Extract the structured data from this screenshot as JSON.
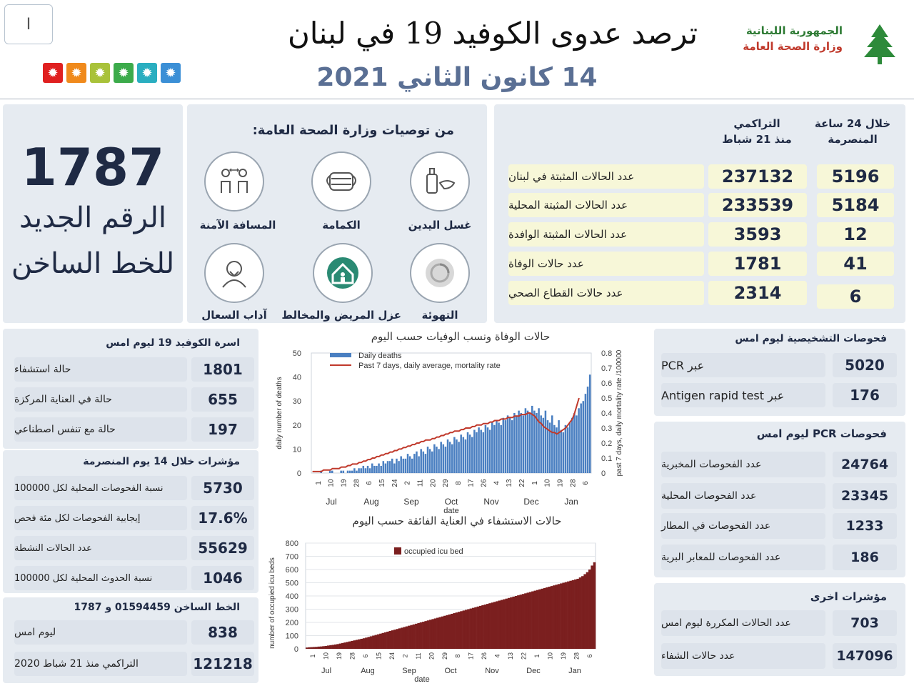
{
  "header": {
    "title": "ترصد عدوى الكوفيد 19 في لبنان",
    "date": "14 كانون الثاني 2021",
    "ministry_line1": "الجمهورية اللبنانية",
    "ministry_line2": "وزارة الصحة العامة",
    "page_marker": "I"
  },
  "colors": {
    "navy": "#1f2a44",
    "date_blue": "#5a6f94",
    "panel_bg": "#e6ebf1",
    "pill_yellow": "#f7f7d8",
    "bar_blue": "#4a7fc1",
    "mortality_red": "#c0392b",
    "icu_maroon": "#7b1f1f"
  },
  "indicator_icons": [
    "red-virus-icon",
    "orange-virus-icon",
    "yellow-green-virus-icon",
    "green-virus-icon",
    "teal-virus-icon",
    "blue-virus-icon"
  ],
  "hotline_panel": {
    "number": "1787",
    "line1": "الرقم الجديد",
    "line2": "للخط الساخن"
  },
  "recommendations": {
    "title": "من توصيات وزارة الصحة العامة:",
    "items": [
      {
        "label": "غسل اليدين",
        "icon": "hand-wash-icon"
      },
      {
        "label": "الكمامة",
        "icon": "face-mask-icon"
      },
      {
        "label": "المسافة الآمنة",
        "icon": "social-distance-icon"
      },
      {
        "label": "التهوئة",
        "icon": "ventilation-icon"
      },
      {
        "label": "عزل المريض والمخالط",
        "icon": "home-isolation-icon"
      },
      {
        "label": "آداب السعال",
        "icon": "cough-etiquette-icon"
      }
    ]
  },
  "cases": {
    "col_24h_line1": "خلال 24 ساعة",
    "col_24h_line2": "المنصرمة",
    "col_cum_line1": "التراكمي",
    "col_cum_line2": "منذ 21 شباط",
    "rows": [
      {
        "label": "عدد الحالات المثبتة في لبنان",
        "cumulative": "237132",
        "daily": "5196"
      },
      {
        "label": "عدد الحالات المثبتة المحلية",
        "cumulative": "233539",
        "daily": "5184"
      },
      {
        "label": "عدد الحالات المثبتة الوافدة",
        "cumulative": "3593",
        "daily": "12"
      },
      {
        "label": "عدد حالات الوفاة",
        "cumulative": "1781",
        "daily": "41"
      },
      {
        "label": "عدد حالات القطاع الصحي",
        "cumulative": "2314",
        "daily": "6"
      }
    ]
  },
  "family": {
    "title": "اسرة الكوفيد 19 ليوم امس",
    "rows": [
      {
        "label": "حالة استشفاء",
        "value": "1801"
      },
      {
        "label": "حالة في العناية المركزة",
        "value": "655"
      },
      {
        "label": "حالة مع تنفس اصطناعي",
        "value": "197"
      }
    ]
  },
  "indicators14": {
    "title": "مؤشرات خلال 14 يوم المنصرمة",
    "rows": [
      {
        "label": "نسبة الفحوصات المحلية لكل 100000",
        "value": "5730"
      },
      {
        "label": "إيجابية الفحوصات لكل مئة فحص",
        "value": "17.6%"
      },
      {
        "label": "عدد الحالات النشطة",
        "value": "55629"
      },
      {
        "label": "نسبة الحدوث المحلية لكل 100000",
        "value": "1046"
      }
    ]
  },
  "hotline_calls": {
    "title": "الخط الساخن 01594459 و 1787",
    "rows": [
      {
        "label": "ليوم امس",
        "value": "838"
      },
      {
        "label": "التراكمي منذ 21 شباط 2020",
        "value": "121218"
      }
    ]
  },
  "diagnostics": {
    "title": "فحوصات التشخيصية ليوم امس",
    "rows": [
      {
        "label": "عبر PCR",
        "value": "5020"
      },
      {
        "label": "عبر Antigen rapid test",
        "value": "176"
      }
    ]
  },
  "pcr": {
    "title": "فحوصات PCR ليوم امس",
    "rows": [
      {
        "label": "عدد الفحوصات المخبرية",
        "value": "24764"
      },
      {
        "label": "عدد الفحوصات المحلية",
        "value": "23345"
      },
      {
        "label": "عدد الفحوصات في المطار",
        "value": "1233"
      },
      {
        "label": "عدد الفحوصات للمعابر البرية",
        "value": "186"
      }
    ]
  },
  "other": {
    "title": "مؤشرات اخرى",
    "rows": [
      {
        "label": "عدد الحالات المكررة ليوم امس",
        "value": "703"
      },
      {
        "label": "عدد حالات الشفاء",
        "value": "147096"
      }
    ]
  },
  "chart_data": [
    {
      "type": "bar",
      "title": "حالات الوفاة ونسب الوفيات حسب اليوم",
      "xlabel": "date",
      "ylabel": "daily number of deaths",
      "y2label": "past 7 days, daily mortality rate /100000",
      "ylim": [
        0,
        50
      ],
      "y2lim": [
        0,
        0.8
      ],
      "yticks": [
        "0",
        "10",
        "20",
        "30",
        "40",
        "50"
      ],
      "y2ticks": [
        "0",
        "0.1",
        "0.2",
        "0.3",
        "0.4",
        "0.5",
        "0.6",
        "0.7",
        "0.8"
      ],
      "months": [
        "Jul",
        "Aug",
        "Sep",
        "Oct",
        "Nov",
        "Dec",
        "Jan"
      ],
      "day_ticks": [
        "1",
        "10",
        "19",
        "28",
        "6",
        "15",
        "24",
        "2",
        "11",
        "20",
        "29",
        "8",
        "17",
        "26",
        "4",
        "13",
        "22",
        "1",
        "10",
        "19",
        "28",
        "6"
      ],
      "legend": [
        "Daily deaths",
        "Past 7 days, daily average, mortality rate"
      ],
      "legend_position": "top-left",
      "series": [
        {
          "name": "Daily deaths",
          "values": [
            0,
            0,
            0,
            0,
            1,
            0,
            0,
            0,
            1,
            1,
            0,
            0,
            0,
            1,
            1,
            0,
            1,
            1,
            1,
            2,
            1,
            2,
            2,
            3,
            2,
            3,
            2,
            4,
            3,
            3,
            4,
            3,
            5,
            4,
            5,
            5,
            6,
            4,
            6,
            5,
            7,
            6,
            6,
            8,
            7,
            6,
            8,
            9,
            7,
            10,
            9,
            8,
            11,
            10,
            9,
            12,
            11,
            10,
            13,
            12,
            11,
            14,
            13,
            12,
            15,
            14,
            13,
            16,
            15,
            14,
            17,
            16,
            15,
            18,
            17,
            19,
            18,
            17,
            20,
            19,
            18,
            21,
            20,
            22,
            21,
            20,
            23,
            22,
            24,
            23,
            22,
            25,
            24,
            26,
            25,
            24,
            27,
            26,
            25,
            28,
            26,
            25,
            27,
            24,
            23,
            26,
            22,
            21,
            24,
            20,
            19,
            22,
            18,
            17,
            20,
            19,
            21,
            23,
            25,
            24,
            27,
            29,
            30,
            33,
            36,
            41
          ]
        },
        {
          "name": "Past 7 days, daily average, mortality rate",
          "values": [
            0.01,
            0.01,
            0.01,
            0.01,
            0.01,
            0.02,
            0.02,
            0.02,
            0.02,
            0.03,
            0.03,
            0.03,
            0.03,
            0.04,
            0.04,
            0.04,
            0.05,
            0.05,
            0.06,
            0.06,
            0.06,
            0.07,
            0.07,
            0.08,
            0.08,
            0.09,
            0.09,
            0.1,
            0.1,
            0.11,
            0.11,
            0.12,
            0.12,
            0.13,
            0.13,
            0.14,
            0.14,
            0.15,
            0.15,
            0.16,
            0.16,
            0.17,
            0.17,
            0.18,
            0.18,
            0.19,
            0.19,
            0.2,
            0.2,
            0.21,
            0.21,
            0.22,
            0.22,
            0.22,
            0.23,
            0.23,
            0.24,
            0.24,
            0.25,
            0.25,
            0.26,
            0.26,
            0.27,
            0.27,
            0.28,
            0.28,
            0.28,
            0.29,
            0.29,
            0.3,
            0.3,
            0.3,
            0.31,
            0.31,
            0.32,
            0.32,
            0.32,
            0.33,
            0.33,
            0.33,
            0.34,
            0.34,
            0.35,
            0.35,
            0.35,
            0.36,
            0.36,
            0.36,
            0.37,
            0.37,
            0.37,
            0.38,
            0.38,
            0.38,
            0.39,
            0.39,
            0.39,
            0.4,
            0.4,
            0.39,
            0.38,
            0.36,
            0.34,
            0.33,
            0.31,
            0.3,
            0.29,
            0.28,
            0.27,
            0.27,
            0.26,
            0.27,
            0.28,
            0.29,
            0.3,
            0.32,
            0.34,
            0.36,
            0.4,
            0.45,
            0.5
          ]
        }
      ]
    },
    {
      "type": "area",
      "title": "حالات الاستشفاء في العناية الفائقة حسب اليوم",
      "xlabel": "date",
      "ylabel": "number of occupied icu beds",
      "ylim": [
        0,
        800
      ],
      "yticks": [
        "0",
        "100",
        "200",
        "300",
        "400",
        "500",
        "600",
        "700",
        "800"
      ],
      "months": [
        "Jul",
        "Aug",
        "Sep",
        "Oct",
        "Nov",
        "Dec",
        "Jan"
      ],
      "day_ticks": [
        "1",
        "10",
        "19",
        "28",
        "6",
        "15",
        "24",
        "2",
        "11",
        "20",
        "29",
        "8",
        "17",
        "26",
        "4",
        "13",
        "22",
        "1",
        "10",
        "19",
        "28",
        "6"
      ],
      "legend": [
        "occupied icu bed"
      ],
      "legend_position": "top-left",
      "series": [
        {
          "name": "occupied icu bed",
          "values": [
            10,
            12,
            13,
            14,
            15,
            17,
            18,
            20,
            22,
            25,
            28,
            30,
            33,
            36,
            40,
            44,
            48,
            52,
            56,
            60,
            64,
            68,
            72,
            76,
            80,
            85,
            90,
            95,
            100,
            105,
            110,
            115,
            120,
            125,
            130,
            135,
            140,
            145,
            150,
            155,
            160,
            165,
            170,
            175,
            180,
            185,
            190,
            195,
            200,
            205,
            210,
            215,
            220,
            225,
            230,
            235,
            240,
            245,
            250,
            255,
            260,
            265,
            270,
            275,
            280,
            285,
            290,
            295,
            300,
            305,
            310,
            315,
            320,
            325,
            330,
            335,
            340,
            345,
            350,
            355,
            360,
            365,
            370,
            375,
            380,
            385,
            390,
            395,
            400,
            405,
            410,
            415,
            420,
            425,
            430,
            435,
            440,
            445,
            450,
            455,
            460,
            465,
            470,
            475,
            480,
            485,
            490,
            495,
            500,
            505,
            510,
            515,
            520,
            525,
            530,
            540,
            550,
            565,
            580,
            600,
            630,
            655
          ]
        }
      ]
    }
  ]
}
